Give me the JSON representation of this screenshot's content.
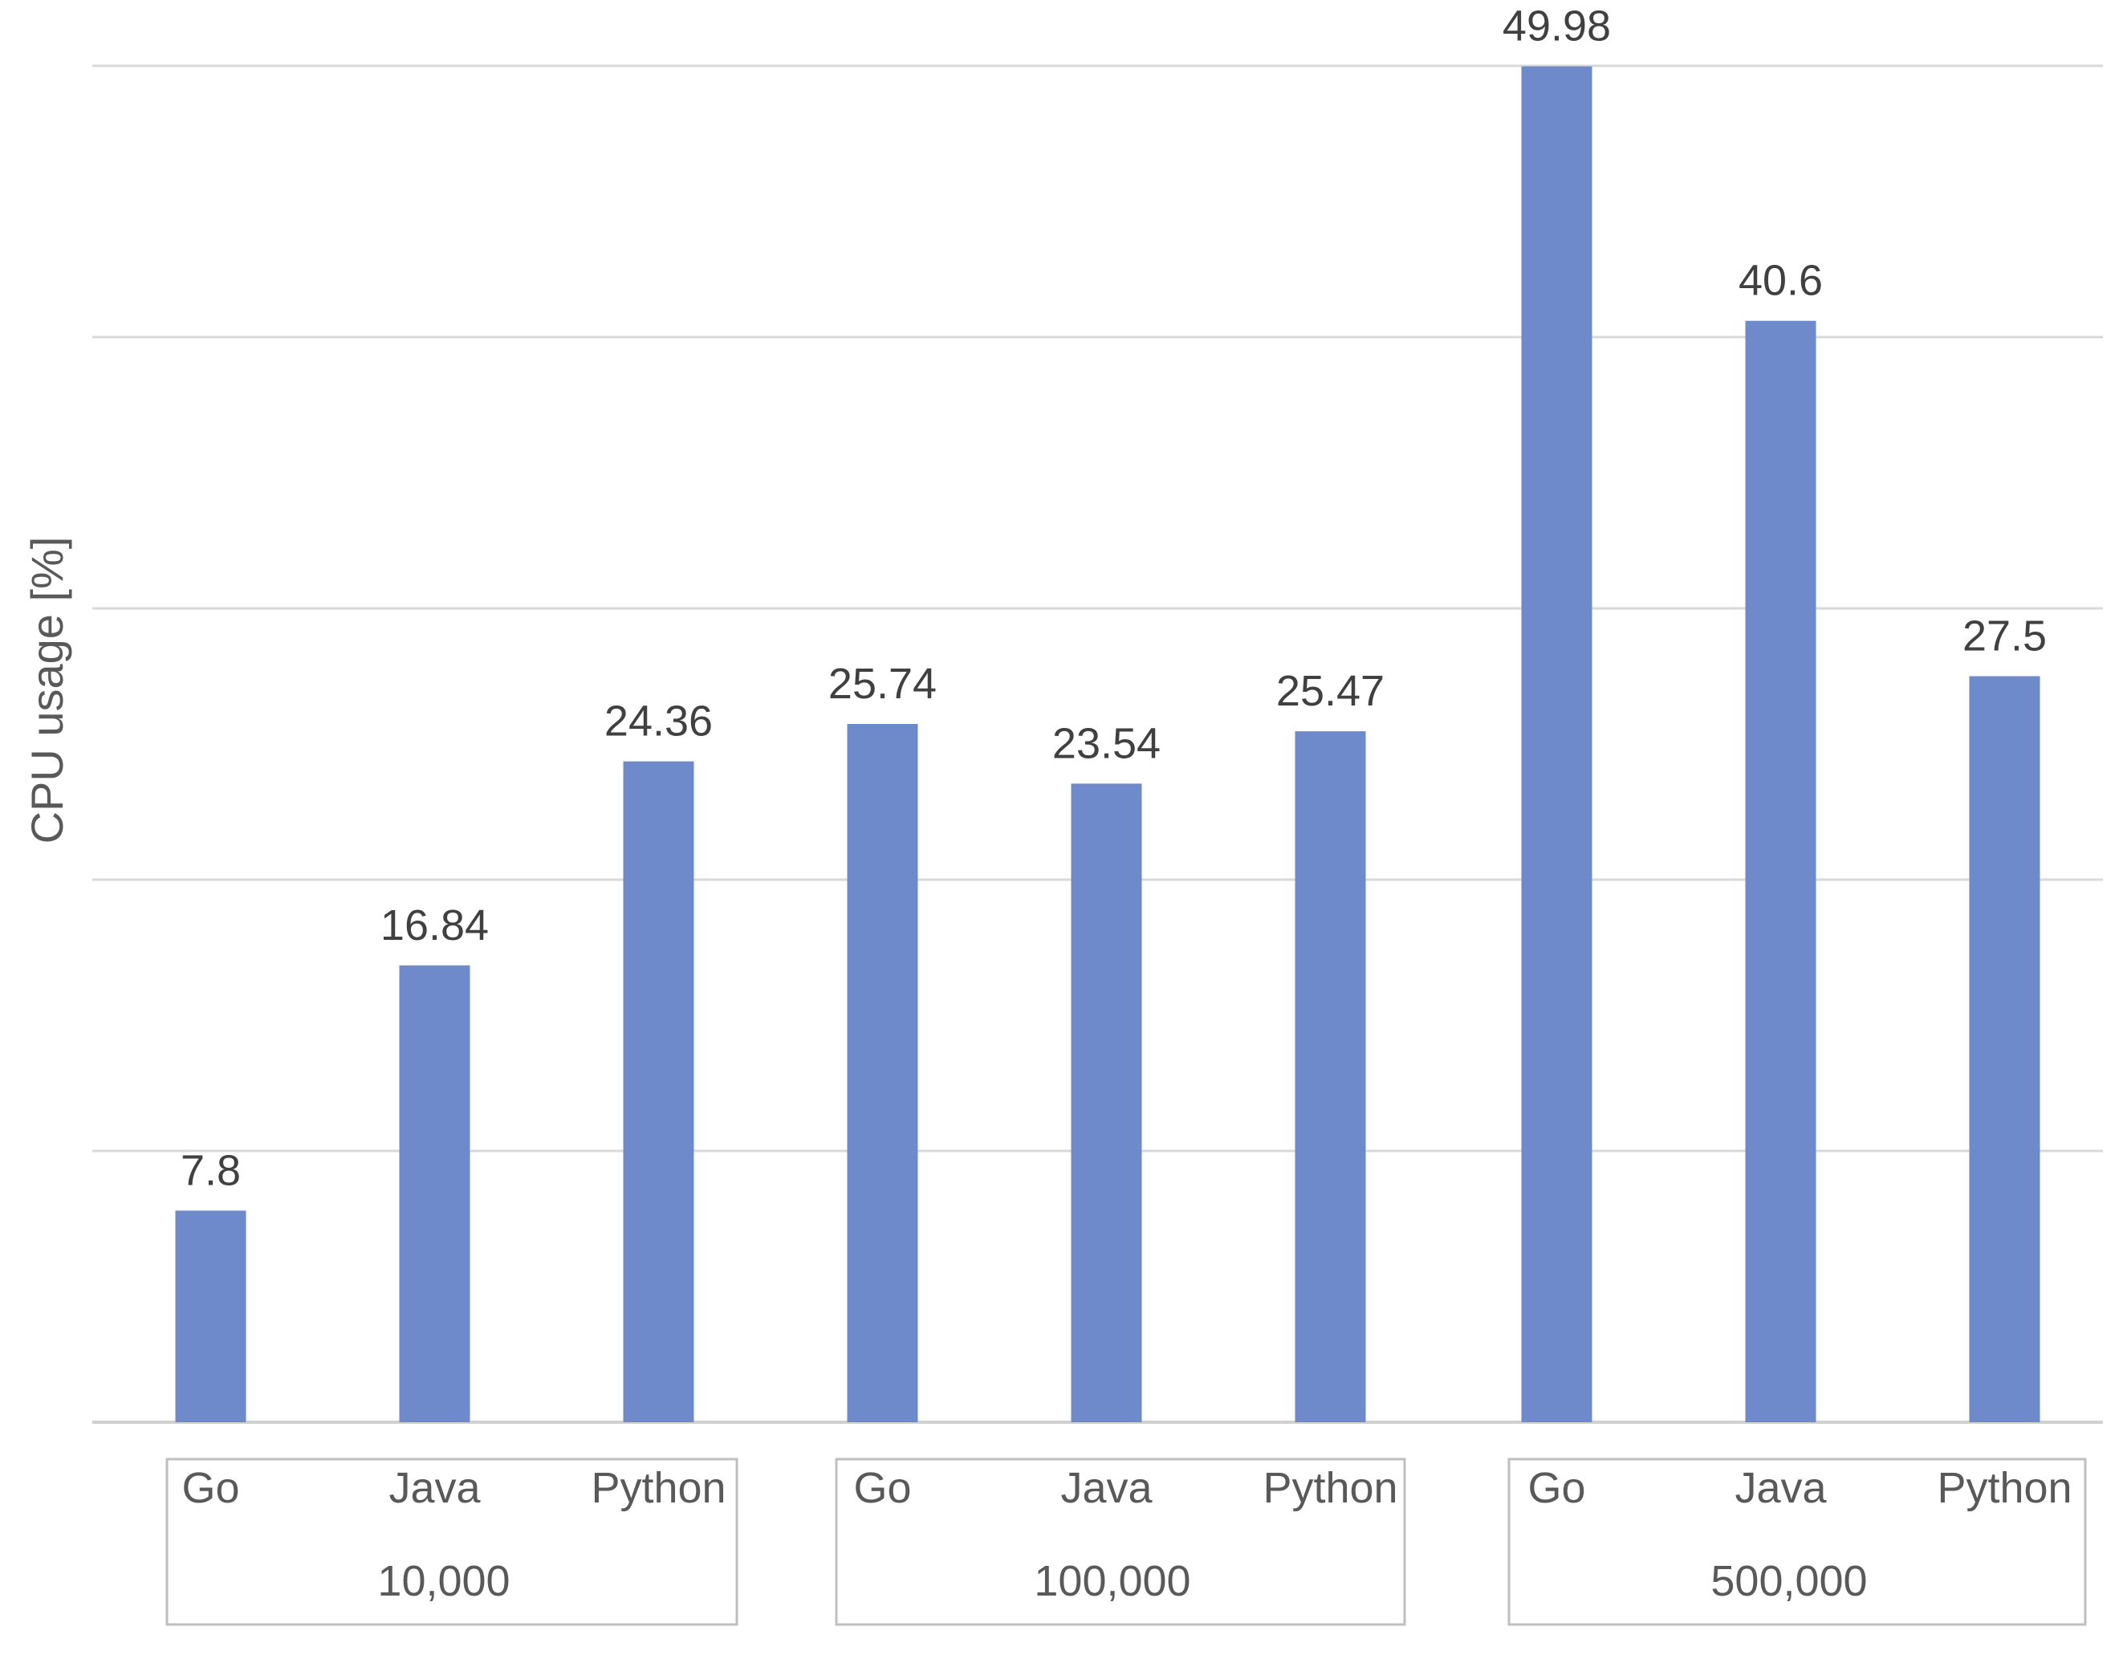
{
  "chart_data": {
    "type": "bar",
    "title": "",
    "xlabel": "",
    "ylabel": "CPU usage [%]",
    "ylim": [
      0,
      50
    ],
    "grid": true,
    "color": "#6f8acb",
    "groups": [
      {
        "label": "10,000",
        "categories": [
          "Go",
          "Java",
          "Python"
        ],
        "values": [
          7.8,
          16.84,
          24.36
        ]
      },
      {
        "label": "100,000",
        "categories": [
          "Go",
          "Java",
          "Python"
        ],
        "values": [
          25.74,
          23.54,
          25.47
        ]
      },
      {
        "label": "500,000",
        "categories": [
          "Go",
          "Java",
          "Python"
        ],
        "values": [
          49.98,
          40.6,
          27.5
        ]
      }
    ]
  }
}
